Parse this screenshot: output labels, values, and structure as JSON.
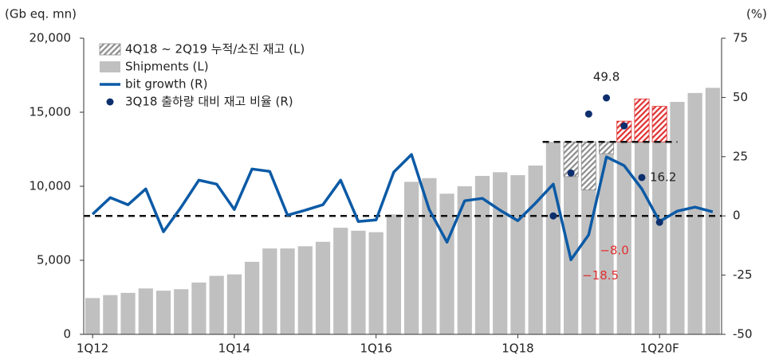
{
  "chart_data": {
    "type": "combo",
    "y_label": "(Gb eq. mn)",
    "y2_label": "(%)",
    "categories": [
      "1Q12",
      null,
      null,
      null,
      null,
      null,
      null,
      null,
      "1Q14",
      null,
      null,
      null,
      null,
      null,
      null,
      null,
      "1Q16",
      null,
      null,
      null,
      null,
      null,
      null,
      null,
      "1Q18",
      null,
      null,
      null,
      null,
      null,
      null,
      null,
      "1Q20F",
      null,
      null,
      null
    ],
    "ylim": [
      0,
      20000
    ],
    "yticks": [
      0,
      {
        "value": 5000,
        "label": "5,000"
      },
      {
        "value": 10000,
        "label": "10,000"
      },
      {
        "value": 15000,
        "label": "15,000"
      },
      {
        "value": 20000,
        "label": "20,000"
      }
    ],
    "y2lim": [
      -50,
      75
    ],
    "y2ticks": [
      -50,
      -25,
      0,
      25,
      50,
      75
    ],
    "reference_lines": [
      {
        "axis": "y2",
        "value": 0
      },
      {
        "axis": "y",
        "value": 13000,
        "from": 26,
        "to": 32
      }
    ],
    "series": [
      {
        "name": "4Q18 ~ 2Q19 누적/소진 재고 (L)",
        "type": "bar",
        "pattern": "hatch",
        "stacked": true,
        "color": "#8c8c8c",
        "point_colors": [
          null,
          null,
          null,
          null,
          null,
          null,
          null,
          null,
          null,
          null,
          null,
          null,
          null,
          null,
          null,
          null,
          null,
          null,
          null,
          null,
          null,
          null,
          null,
          null,
          null,
          null,
          null,
          null,
          null,
          null,
          "#e03030",
          "#e03030",
          "#e03030",
          null,
          null,
          null
        ],
        "values": [
          null,
          null,
          null,
          null,
          null,
          null,
          null,
          null,
          null,
          null,
          null,
          null,
          null,
          null,
          null,
          null,
          null,
          null,
          null,
          null,
          null,
          null,
          null,
          null,
          null,
          null,
          null,
          2350,
          3250,
          800,
          1400,
          2900,
          2400,
          null,
          null,
          null
        ]
      },
      {
        "name": "Shipments (L)",
        "type": "bar",
        "color": "#c0c0c0",
        "values": [
          2450,
          2650,
          2800,
          3100,
          2950,
          3050,
          3500,
          3950,
          4050,
          4900,
          5800,
          5800,
          5950,
          6250,
          7200,
          7000,
          6900,
          8100,
          10300,
          10550,
          9500,
          10000,
          10700,
          10950,
          10750,
          11400,
          13000,
          10650,
          9750,
          12200,
          13000,
          13000,
          13000,
          15700,
          16300,
          16650
        ]
      },
      {
        "name": "bit growth (R)",
        "type": "line",
        "axis": "y2",
        "color": "#0b5aa6",
        "label_color": "#e03030",
        "values": [
          0.7,
          7.7,
          4.7,
          11.4,
          -6.7,
          3.7,
          15.1,
          13.4,
          2.7,
          19.8,
          18.8,
          0.3,
          2.4,
          4.7,
          15.1,
          -2.4,
          -1.7,
          18.5,
          25.9,
          2.7,
          -11.1,
          6.4,
          7.4,
          2.4,
          -2.0,
          5.4,
          13.4,
          -18.5,
          -8.0,
          24.9,
          21.2,
          11.4,
          -2.4,
          2.0,
          3.7,
          1.7
        ],
        "value_labels": [
          null,
          null,
          null,
          null,
          null,
          null,
          null,
          null,
          null,
          null,
          null,
          null,
          null,
          null,
          null,
          null,
          null,
          null,
          null,
          null,
          null,
          null,
          null,
          null,
          null,
          null,
          null,
          "−18.5",
          "−8.0",
          null,
          null,
          null,
          null,
          null,
          null,
          null
        ]
      },
      {
        "name": "3Q18 출하량 대비 재고 비율 (R)",
        "type": "scatter",
        "axis": "y2",
        "color": "#0d2f6e",
        "label_color": "#222222",
        "values": [
          null,
          null,
          null,
          null,
          null,
          null,
          null,
          null,
          null,
          null,
          null,
          null,
          null,
          null,
          null,
          null,
          null,
          null,
          null,
          null,
          null,
          null,
          null,
          null,
          null,
          null,
          0,
          18.1,
          43,
          49.8,
          38,
          16.2,
          -2.7,
          null,
          null,
          null
        ],
        "value_labels": [
          null,
          null,
          null,
          null,
          null,
          null,
          null,
          null,
          null,
          null,
          null,
          null,
          null,
          null,
          null,
          null,
          null,
          null,
          null,
          null,
          null,
          null,
          null,
          null,
          null,
          null,
          null,
          null,
          null,
          "49.8",
          null,
          "16.2",
          null,
          null,
          null,
          null
        ]
      }
    ]
  }
}
